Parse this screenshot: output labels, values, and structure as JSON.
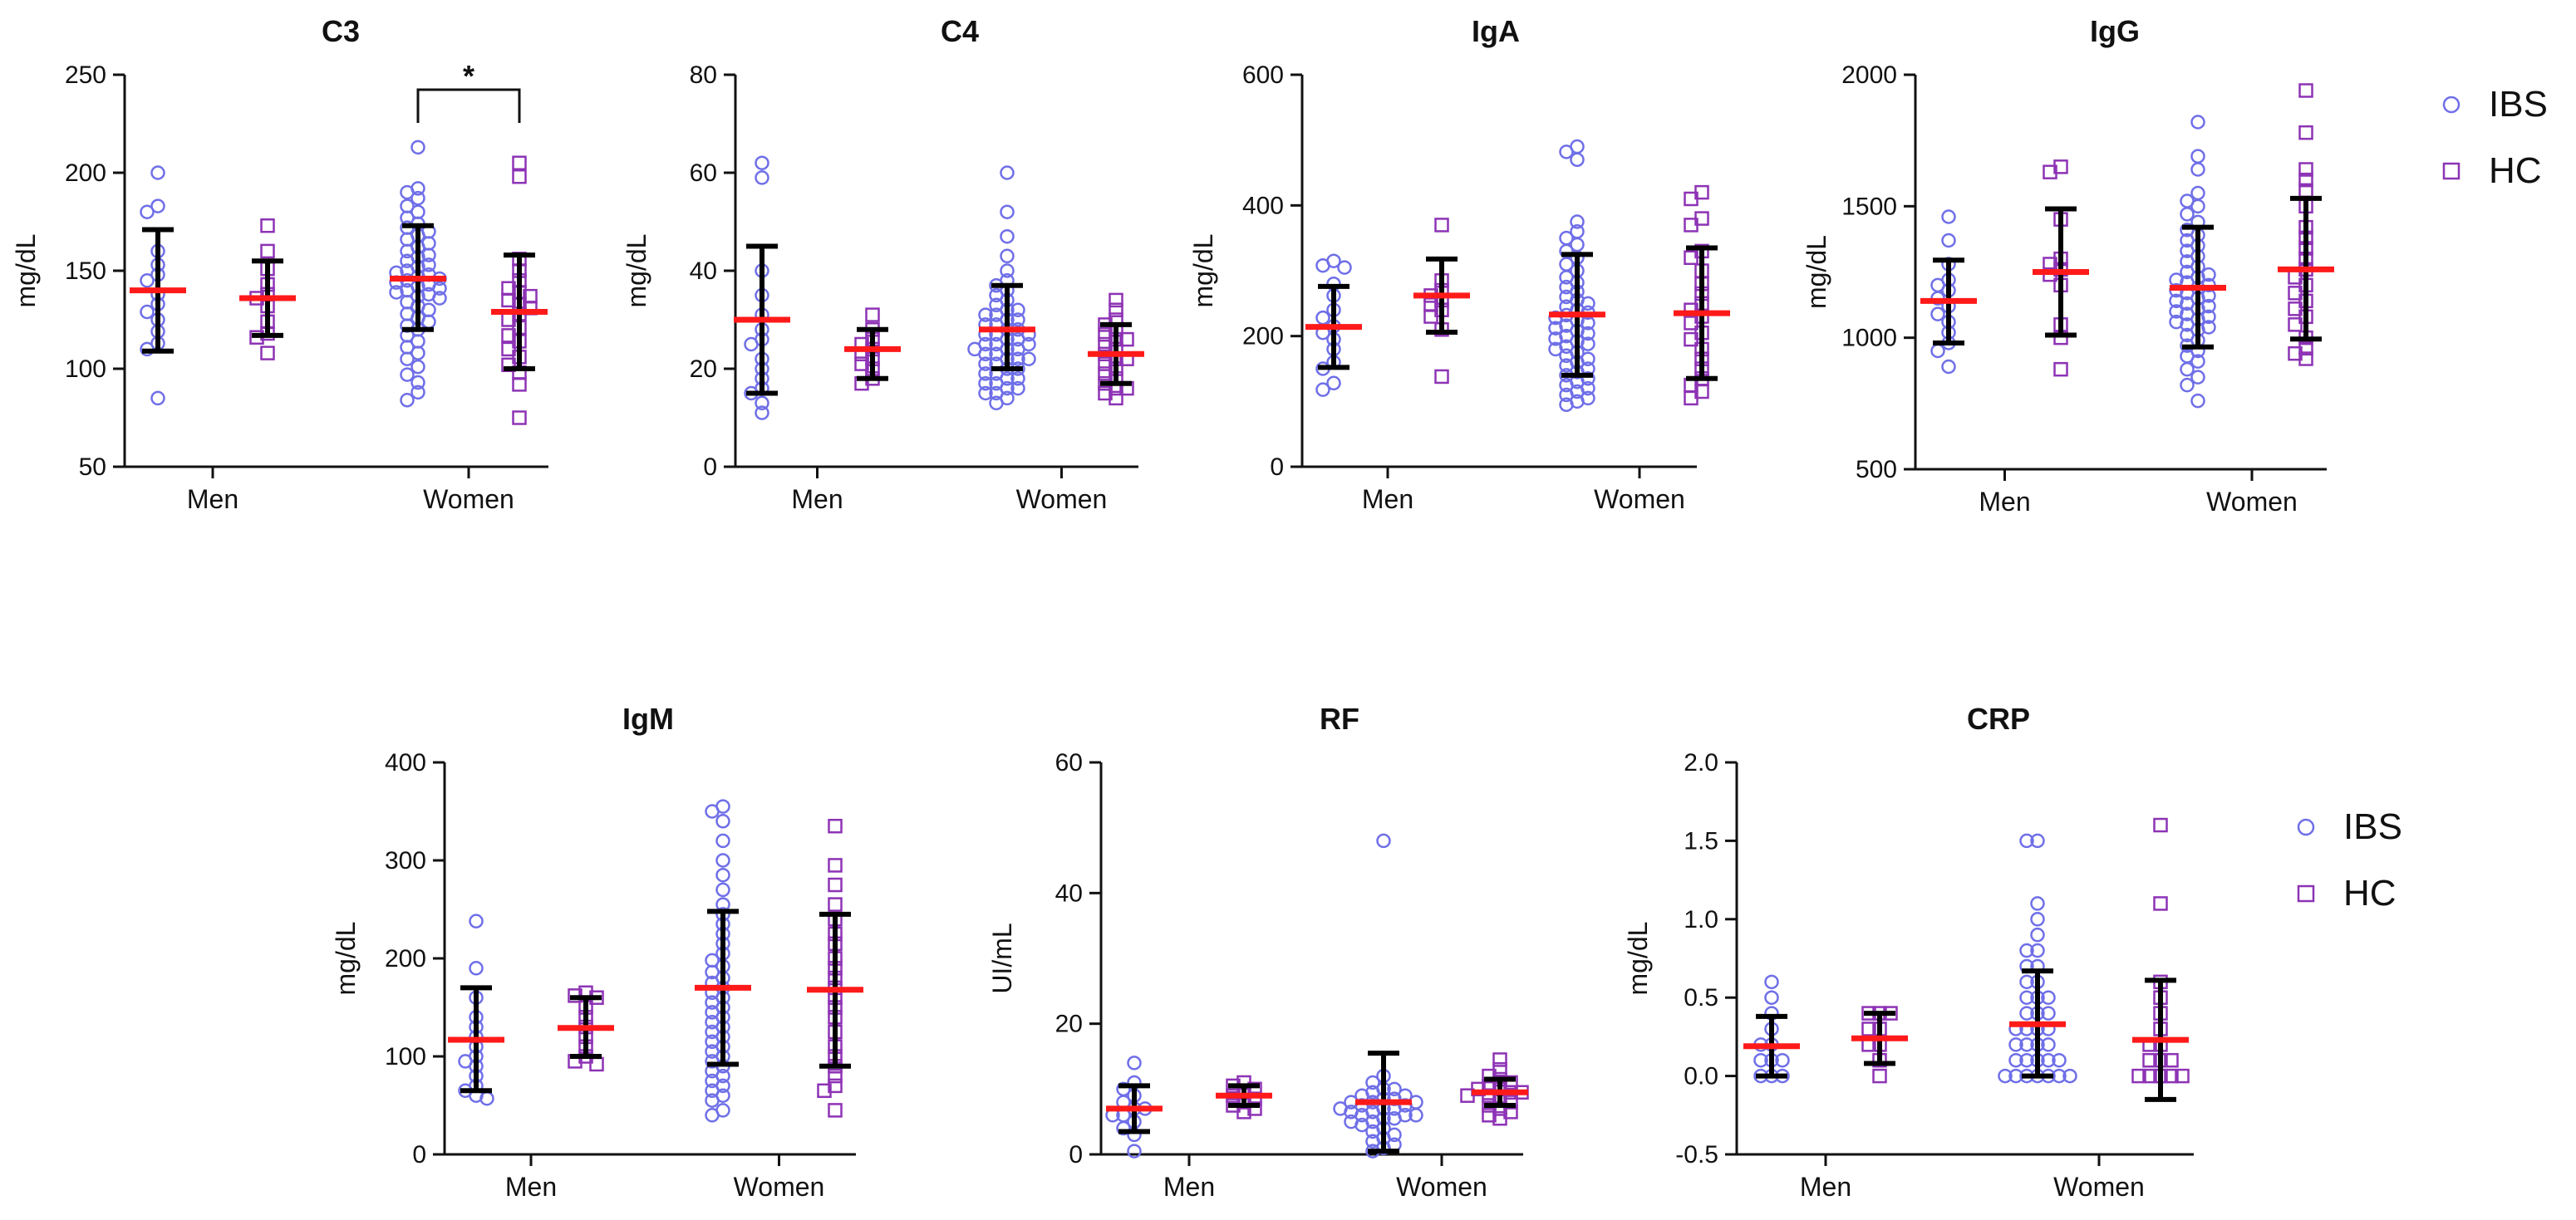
{
  "colors": {
    "ibs": "#6f6fe8",
    "hc": "#8d33b5",
    "mean": "#ff1a1a",
    "errorbar": "#000000"
  },
  "legends": [
    {
      "entries": [
        {
          "name": "IBS",
          "marker": "circle"
        },
        {
          "name": "HC",
          "marker": "square"
        }
      ]
    },
    {
      "entries": [
        {
          "name": "IBS",
          "marker": "circle"
        },
        {
          "name": "HC",
          "marker": "square"
        }
      ]
    }
  ],
  "chart_data": [
    {
      "type": "scatter",
      "title": "C3",
      "ylabel": "mg/dL",
      "ylim": [
        50,
        250
      ],
      "yticks": [
        50,
        100,
        150,
        200,
        250
      ],
      "ytick_labels": [
        "50",
        "100",
        "150",
        "200",
        "250"
      ],
      "categories": [
        "Men",
        "Women"
      ],
      "significance": [
        {
          "from": "Women-IBS",
          "to": "Women-HC",
          "label": "*"
        }
      ],
      "groups": [
        {
          "category": "Men",
          "series": "IBS",
          "mean": 140,
          "err_low": 109,
          "err_high": 171,
          "points": [
            200,
            183,
            180,
            160,
            153,
            148,
            145,
            138,
            133,
            129,
            125,
            119,
            113,
            110,
            85
          ]
        },
        {
          "category": "Men",
          "series": "HC",
          "mean": 136,
          "err_low": 117,
          "err_high": 155,
          "points": [
            173,
            160,
            151,
            143,
            138,
            136,
            132,
            124,
            118,
            116,
            108
          ]
        },
        {
          "category": "Women",
          "series": "IBS",
          "mean": 146,
          "err_low": 120,
          "err_high": 173,
          "points": [
            213,
            192,
            190,
            187,
            183,
            180,
            177,
            174,
            172,
            170,
            168,
            166,
            164,
            162,
            160,
            158,
            157,
            155,
            153,
            152,
            150,
            149,
            148,
            147,
            146,
            145,
            144,
            143,
            142,
            141,
            140,
            139,
            138,
            137,
            136,
            134,
            132,
            130,
            128,
            126,
            124,
            122,
            120,
            117,
            114,
            111,
            108,
            105,
            101,
            97,
            93,
            88,
            84
          ]
        },
        {
          "category": "Women",
          "series": "HC",
          "mean": 129,
          "err_low": 100,
          "err_high": 158,
          "points": [
            205,
            198,
            156,
            150,
            145,
            141,
            139,
            137,
            135,
            133,
            131,
            128,
            125,
            121,
            117,
            114,
            110,
            106,
            102,
            98,
            92,
            75
          ]
        }
      ]
    },
    {
      "type": "scatter",
      "title": "C4",
      "ylabel": "mg/dL",
      "ylim": [
        0,
        80
      ],
      "yticks": [
        0,
        20,
        40,
        60,
        80
      ],
      "ytick_labels": [
        "0",
        "20",
        "40",
        "60",
        "80"
      ],
      "categories": [
        "Men",
        "Women"
      ],
      "significance": [],
      "groups": [
        {
          "category": "Men",
          "series": "IBS",
          "mean": 30,
          "err_low": 15,
          "err_high": 45,
          "points": [
            62,
            59,
            40,
            35,
            31,
            28,
            26,
            25,
            22,
            20,
            18,
            16,
            15,
            13,
            11
          ]
        },
        {
          "category": "Men",
          "series": "HC",
          "mean": 24,
          "err_low": 18,
          "err_high": 28,
          "points": [
            31,
            28,
            26,
            25,
            24,
            23,
            22,
            21,
            20,
            18,
            17
          ]
        },
        {
          "category": "Women",
          "series": "IBS",
          "mean": 28,
          "err_low": 20,
          "err_high": 37,
          "points": [
            60,
            52,
            47,
            43,
            40,
            38,
            37,
            36,
            35,
            34,
            33,
            32,
            32,
            31,
            31,
            30,
            30,
            29,
            29,
            28,
            28,
            27,
            27,
            27,
            26,
            26,
            25,
            25,
            25,
            24,
            24,
            24,
            23,
            23,
            22,
            22,
            22,
            21,
            21,
            20,
            20,
            19,
            19,
            18,
            18,
            17,
            17,
            16,
            16,
            15,
            15,
            14,
            13
          ]
        },
        {
          "category": "Women",
          "series": "HC",
          "mean": 23,
          "err_low": 17,
          "err_high": 29,
          "points": [
            34,
            32,
            30,
            29,
            28,
            27,
            26,
            26,
            25,
            24,
            23,
            22,
            22,
            21,
            20,
            19,
            18,
            17,
            16,
            16,
            15,
            14
          ]
        }
      ]
    },
    {
      "type": "scatter",
      "title": "IgA",
      "ylabel": "mg/dL",
      "ylim": [
        0,
        600
      ],
      "yticks": [
        0,
        200,
        400,
        600
      ],
      "ytick_labels": [
        "0",
        "200",
        "400",
        "600"
      ],
      "categories": [
        "Men",
        "Women"
      ],
      "significance": [],
      "groups": [
        {
          "category": "Men",
          "series": "IBS",
          "mean": 214,
          "err_low": 152,
          "err_high": 276,
          "points": [
            315,
            308,
            305,
            280,
            262,
            240,
            228,
            215,
            205,
            195,
            180,
            160,
            150,
            128,
            118
          ]
        },
        {
          "category": "Men",
          "series": "HC",
          "mean": 262,
          "err_low": 206,
          "err_high": 318,
          "points": [
            370,
            285,
            270,
            262,
            255,
            248,
            240,
            230,
            210,
            138
          ]
        },
        {
          "category": "Women",
          "series": "IBS",
          "mean": 233,
          "err_low": 140,
          "err_high": 325,
          "points": [
            490,
            482,
            470,
            375,
            360,
            350,
            340,
            330,
            320,
            310,
            300,
            290,
            282,
            275,
            268,
            260,
            255,
            250,
            245,
            240,
            236,
            232,
            228,
            224,
            220,
            216,
            212,
            208,
            204,
            200,
            196,
            192,
            188,
            184,
            180,
            175,
            170,
            165,
            160,
            155,
            150,
            145,
            140,
            135,
            130,
            125,
            120,
            115,
            110,
            105,
            100,
            95
          ]
        },
        {
          "category": "Women",
          "series": "HC",
          "mean": 235,
          "err_low": 135,
          "err_high": 335,
          "points": [
            420,
            410,
            380,
            370,
            330,
            320,
            300,
            280,
            265,
            250,
            240,
            230,
            220,
            205,
            195,
            180,
            165,
            150,
            135,
            125,
            115,
            105
          ]
        }
      ]
    },
    {
      "type": "scatter",
      "title": "IgG",
      "ylabel": "mg/dL",
      "ylim": [
        500,
        2000
      ],
      "yticks": [
        500,
        1000,
        1500,
        2000
      ],
      "ytick_labels": [
        "500",
        "1000",
        "1500",
        "2000"
      ],
      "categories": [
        "Men",
        "Women"
      ],
      "significance": [],
      "groups": [
        {
          "category": "Men",
          "series": "IBS",
          "mean": 1140,
          "err_low": 980,
          "err_high": 1295,
          "points": [
            1460,
            1370,
            1280,
            1220,
            1200,
            1180,
            1150,
            1120,
            1090,
            1060,
            1020,
            980,
            950,
            890
          ]
        },
        {
          "category": "Men",
          "series": "HC",
          "mean": 1250,
          "err_low": 1010,
          "err_high": 1490,
          "points": [
            1650,
            1630,
            1450,
            1300,
            1280,
            1260,
            1240,
            1200,
            1050,
            1000,
            880
          ]
        },
        {
          "category": "Women",
          "series": "IBS",
          "mean": 1190,
          "err_low": 965,
          "err_high": 1420,
          "points": [
            1820,
            1690,
            1640,
            1550,
            1520,
            1500,
            1470,
            1440,
            1410,
            1390,
            1370,
            1350,
            1330,
            1310,
            1290,
            1270,
            1250,
            1240,
            1230,
            1220,
            1210,
            1200,
            1190,
            1180,
            1170,
            1160,
            1150,
            1140,
            1130,
            1120,
            1110,
            1100,
            1090,
            1080,
            1070,
            1060,
            1050,
            1040,
            1030,
            1010,
            990,
            970,
            950,
            930,
            910,
            880,
            850,
            820,
            760
          ]
        },
        {
          "category": "Women",
          "series": "HC",
          "mean": 1260,
          "err_low": 995,
          "err_high": 1530,
          "points": [
            1940,
            1780,
            1640,
            1600,
            1560,
            1500,
            1420,
            1380,
            1340,
            1300,
            1260,
            1230,
            1200,
            1170,
            1140,
            1110,
            1080,
            1050,
            1000,
            960,
            940,
            920
          ]
        }
      ]
    },
    {
      "type": "scatter",
      "title": "IgM",
      "ylabel": "mg/dL",
      "ylim": [
        0,
        400
      ],
      "yticks": [
        0,
        100,
        200,
        300,
        400
      ],
      "ytick_labels": [
        "0",
        "100",
        "200",
        "300",
        "400"
      ],
      "categories": [
        "Men",
        "Women"
      ],
      "significance": [],
      "groups": [
        {
          "category": "Men",
          "series": "IBS",
          "mean": 117,
          "err_low": 65,
          "err_high": 170,
          "points": [
            238,
            190,
            160,
            140,
            130,
            120,
            110,
            100,
            95,
            90,
            80,
            70,
            65,
            60,
            57
          ]
        },
        {
          "category": "Men",
          "series": "HC",
          "mean": 129,
          "err_low": 100,
          "err_high": 160,
          "points": [
            165,
            162,
            160,
            150,
            140,
            130,
            120,
            110,
            100,
            95,
            92
          ]
        },
        {
          "category": "Women",
          "series": "IBS",
          "mean": 170,
          "err_low": 92,
          "err_high": 248,
          "points": [
            355,
            350,
            340,
            320,
            300,
            285,
            270,
            255,
            245,
            235,
            225,
            215,
            205,
            198,
            192,
            186,
            180,
            175,
            170,
            165,
            160,
            155,
            150,
            145,
            140,
            135,
            130,
            125,
            120,
            115,
            110,
            105,
            100,
            95,
            90,
            85,
            80,
            75,
            70,
            65,
            60,
            55,
            45,
            40
          ]
        },
        {
          "category": "Women",
          "series": "HC",
          "mean": 168,
          "err_low": 90,
          "err_high": 245,
          "points": [
            335,
            295,
            275,
            255,
            240,
            225,
            215,
            200,
            190,
            180,
            170,
            160,
            150,
            140,
            125,
            110,
            100,
            90,
            80,
            70,
            65,
            45
          ]
        }
      ]
    },
    {
      "type": "scatter",
      "title": "RF",
      "ylabel": "UI/mL",
      "ylim": [
        0,
        60
      ],
      "yticks": [
        0,
        20,
        40,
        60
      ],
      "ytick_labels": [
        "0",
        "20",
        "40",
        "60"
      ],
      "categories": [
        "Men",
        "Women"
      ],
      "significance": [],
      "groups": [
        {
          "category": "Men",
          "series": "IBS",
          "mean": 7,
          "err_low": 3.5,
          "err_high": 10.5,
          "points": [
            14,
            11,
            10,
            9,
            8,
            7,
            7,
            6,
            6,
            5,
            4,
            3,
            0.5
          ]
        },
        {
          "category": "Men",
          "series": "HC",
          "mean": 9,
          "err_low": 7.5,
          "err_high": 10.5,
          "points": [
            11,
            10.5,
            10,
            9.5,
            9,
            8.5,
            8,
            7.5,
            7,
            6.5
          ]
        },
        {
          "category": "Women",
          "series": "IBS",
          "mean": 8,
          "err_low": 0.5,
          "err_high": 15.5,
          "points": [
            48,
            12,
            11,
            10,
            10,
            9.5,
            9,
            9,
            8.5,
            8.5,
            8,
            8,
            8,
            7.5,
            7.5,
            7,
            7,
            7,
            6.5,
            6.5,
            6,
            6,
            6,
            5.5,
            5.5,
            5,
            5,
            4.5,
            4,
            3.5,
            3,
            2.5,
            2,
            1.5,
            1,
            0.5
          ]
        },
        {
          "category": "Women",
          "series": "HC",
          "mean": 9.5,
          "err_low": 7.5,
          "err_high": 11.5,
          "points": [
            14.5,
            13,
            12,
            11.5,
            11,
            10.5,
            10,
            10,
            9.5,
            9.5,
            9,
            9,
            8.5,
            8,
            7.5,
            7,
            6.5,
            6,
            5.5
          ]
        }
      ]
    },
    {
      "type": "scatter",
      "title": "CRP",
      "ylabel": "mg/dL",
      "ylim": [
        -0.5,
        2.0
      ],
      "yticks": [
        -0.5,
        0.0,
        0.5,
        1.0,
        1.5,
        2.0
      ],
      "ytick_labels": [
        "-0.5",
        "0.0",
        "0.5",
        "1.0",
        "1.5",
        "2.0"
      ],
      "categories": [
        "Men",
        "Women"
      ],
      "significance": [],
      "groups": [
        {
          "category": "Men",
          "series": "IBS",
          "mean": 0.19,
          "err_low": 0.0,
          "err_high": 0.38,
          "points": [
            0.6,
            0.5,
            0.4,
            0.3,
            0.2,
            0.2,
            0.1,
            0.1,
            0.1,
            0.0,
            0.0,
            0.0
          ]
        },
        {
          "category": "Men",
          "series": "HC",
          "mean": 0.24,
          "err_low": 0.08,
          "err_high": 0.4,
          "points": [
            0.4,
            0.4,
            0.4,
            0.3,
            0.3,
            0.2,
            0.2,
            0.1,
            0.0
          ]
        },
        {
          "category": "Women",
          "series": "IBS",
          "mean": 0.33,
          "err_low": 0.0,
          "err_high": 0.67,
          "points": [
            1.5,
            1.5,
            1.1,
            1.0,
            0.9,
            0.8,
            0.8,
            0.7,
            0.7,
            0.6,
            0.6,
            0.5,
            0.5,
            0.5,
            0.4,
            0.4,
            0.4,
            0.3,
            0.3,
            0.3,
            0.3,
            0.2,
            0.2,
            0.2,
            0.2,
            0.1,
            0.1,
            0.1,
            0.1,
            0.1,
            0.0,
            0.0,
            0.0,
            0.0,
            0.0,
            0.0,
            0.0
          ]
        },
        {
          "category": "Women",
          "series": "HC",
          "mean": 0.23,
          "err_low": -0.15,
          "err_high": 0.61,
          "points": [
            1.6,
            1.1,
            0.6,
            0.5,
            0.4,
            0.3,
            0.2,
            0.2,
            0.1,
            0.1,
            0.1,
            0.0,
            0.0,
            0.0,
            0.0,
            0.0
          ]
        }
      ]
    }
  ]
}
